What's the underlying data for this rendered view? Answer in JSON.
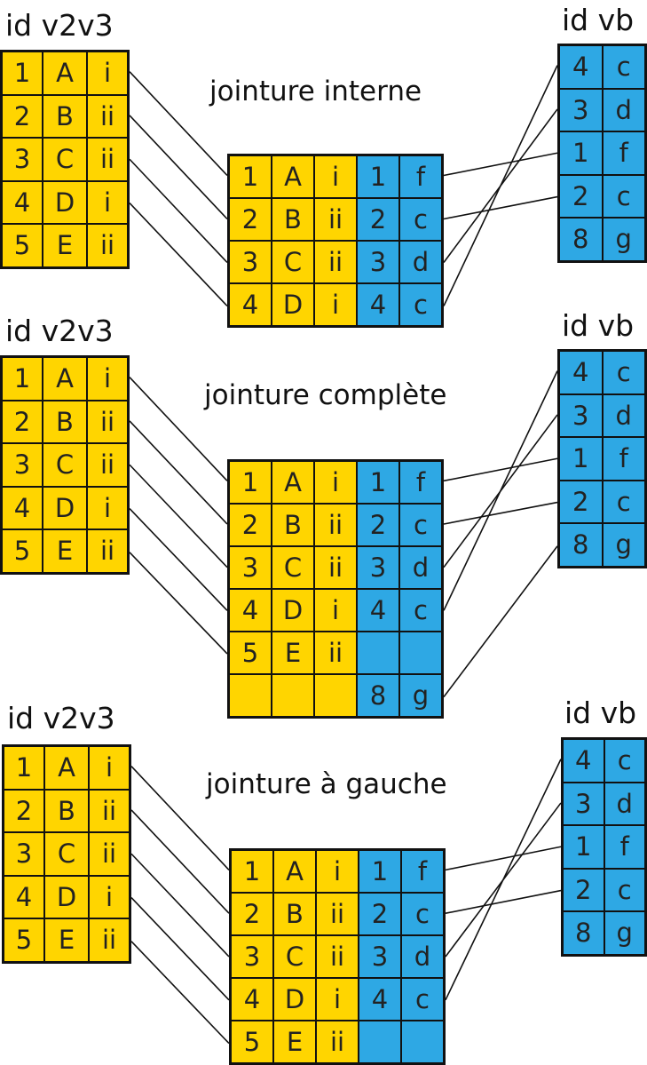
{
  "colors": {
    "left_fill": "#FFD500",
    "right_fill": "#2EA8E4",
    "stroke": "#111111"
  },
  "sections": [
    {
      "title": "jointure interne",
      "left_headers": [
        "id",
        "v2",
        "v3"
      ],
      "right_headers": [
        "id",
        "vb"
      ],
      "left_rows": [
        [
          "1",
          "A",
          "i"
        ],
        [
          "2",
          "B",
          "ii"
        ],
        [
          "3",
          "C",
          "ii"
        ],
        [
          "4",
          "D",
          "i"
        ],
        [
          "5",
          "E",
          "ii"
        ]
      ],
      "right_rows": [
        [
          "4",
          "c"
        ],
        [
          "3",
          "d"
        ],
        [
          "1",
          "f"
        ],
        [
          "2",
          "c"
        ],
        [
          "8",
          "g"
        ]
      ],
      "result_rows": [
        [
          "1",
          "A",
          "i",
          "1",
          "f"
        ],
        [
          "2",
          "B",
          "ii",
          "2",
          "c"
        ],
        [
          "3",
          "C",
          "ii",
          "3",
          "d"
        ],
        [
          "4",
          "D",
          "i",
          "4",
          "c"
        ]
      ]
    },
    {
      "title": "jointure complète",
      "left_headers": [
        "id",
        "v2",
        "v3"
      ],
      "right_headers": [
        "id",
        "vb"
      ],
      "left_rows": [
        [
          "1",
          "A",
          "i"
        ],
        [
          "2",
          "B",
          "ii"
        ],
        [
          "3",
          "C",
          "ii"
        ],
        [
          "4",
          "D",
          "i"
        ],
        [
          "5",
          "E",
          "ii"
        ]
      ],
      "right_rows": [
        [
          "4",
          "c"
        ],
        [
          "3",
          "d"
        ],
        [
          "1",
          "f"
        ],
        [
          "2",
          "c"
        ],
        [
          "8",
          "g"
        ]
      ],
      "result_rows": [
        [
          "1",
          "A",
          "i",
          "1",
          "f"
        ],
        [
          "2",
          "B",
          "ii",
          "2",
          "c"
        ],
        [
          "3",
          "C",
          "ii",
          "3",
          "d"
        ],
        [
          "4",
          "D",
          "i",
          "4",
          "c"
        ],
        [
          "5",
          "E",
          "ii",
          "",
          ""
        ],
        [
          "",
          "",
          "",
          "8",
          "g"
        ]
      ]
    },
    {
      "title": "jointure à gauche",
      "left_headers": [
        "id",
        "v2",
        "v3"
      ],
      "right_headers": [
        "id",
        "vb"
      ],
      "left_rows": [
        [
          "1",
          "A",
          "i"
        ],
        [
          "2",
          "B",
          "ii"
        ],
        [
          "3",
          "C",
          "ii"
        ],
        [
          "4",
          "D",
          "i"
        ],
        [
          "5",
          "E",
          "ii"
        ]
      ],
      "right_rows": [
        [
          "4",
          "c"
        ],
        [
          "3",
          "d"
        ],
        [
          "1",
          "f"
        ],
        [
          "2",
          "c"
        ],
        [
          "8",
          "g"
        ]
      ],
      "result_rows": [
        [
          "1",
          "A",
          "i",
          "1",
          "f"
        ],
        [
          "2",
          "B",
          "ii",
          "2",
          "c"
        ],
        [
          "3",
          "C",
          "ii",
          "3",
          "d"
        ],
        [
          "4",
          "D",
          "i",
          "4",
          "c"
        ],
        [
          "5",
          "E",
          "ii",
          "",
          ""
        ]
      ]
    }
  ]
}
